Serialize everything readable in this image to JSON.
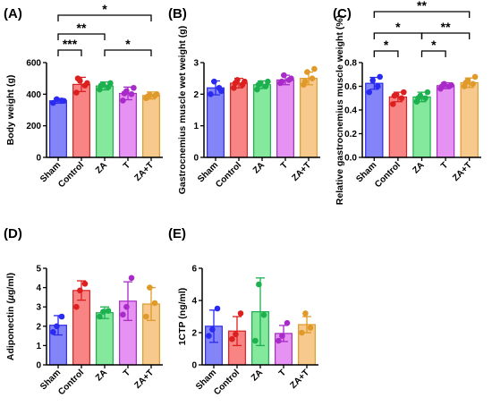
{
  "categories": [
    "Sham",
    "Control",
    "ZA",
    "T",
    "ZA+T"
  ],
  "colors": {
    "fill": [
      "#6e6ef8",
      "#f76f6f",
      "#6ee48c",
      "#e27ff0",
      "#f7bf78"
    ],
    "dot": [
      "#2a2af0",
      "#dc1f1f",
      "#1db04e",
      "#a82ac8",
      "#e09a2a"
    ]
  },
  "chart_data": [
    {
      "panel": "(A)",
      "type": "bar",
      "ylabel": "Body weight (g)",
      "categories": [
        "Sham",
        "Control",
        "ZA",
        "T",
        "ZA+T"
      ],
      "ylim": [
        0,
        600
      ],
      "yticks": [
        0,
        200,
        400,
        600
      ],
      "values": [
        358,
        462,
        452,
        405,
        392
      ],
      "errors": [
        15,
        45,
        25,
        40,
        22
      ],
      "points": [
        [
          345,
          360,
          368,
          358
        ],
        [
          410,
          455,
          485,
          470,
          500
        ],
        [
          430,
          445,
          460,
          470,
          455
        ],
        [
          360,
          400,
          420,
          440,
          405
        ],
        [
          375,
          390,
          395,
          400,
          385
        ]
      ],
      "significance": [
        {
          "from": 0,
          "to": 1,
          "label": "***"
        },
        {
          "from": 0,
          "to": 2,
          "label": "**"
        },
        {
          "from": 0,
          "to": 4,
          "label": "*"
        },
        {
          "from": 2,
          "to": 4,
          "label": "*"
        }
      ]
    },
    {
      "panel": "(B)",
      "type": "bar",
      "ylabel": "Gastrocnemius muscle wet weight (g)",
      "categories": [
        "Sham",
        "Control",
        "ZA",
        "T",
        "ZA+T"
      ],
      "ylim": [
        0,
        3
      ],
      "yticks": [
        0,
        1,
        2,
        3
      ],
      "values": [
        2.2,
        2.35,
        2.3,
        2.45,
        2.5
      ],
      "errors": [
        0.22,
        0.15,
        0.12,
        0.15,
        0.2
      ],
      "points": [
        [
          2.0,
          2.2,
          2.4,
          2.1
        ],
        [
          2.2,
          2.3,
          2.45,
          2.4,
          2.35
        ],
        [
          2.15,
          2.25,
          2.35,
          2.4,
          2.3
        ],
        [
          2.35,
          2.45,
          2.6,
          2.5,
          2.4
        ],
        [
          2.3,
          2.5,
          2.7,
          2.8,
          2.4
        ]
      ],
      "significance": []
    },
    {
      "panel": "(C)",
      "type": "bar",
      "ylabel": "Relative gastrocnemius muscle weight (%)",
      "categories": [
        "Sham",
        "Control",
        "ZA",
        "T",
        "ZA+T"
      ],
      "ylim": [
        0,
        0.8
      ],
      "yticks": [
        0.0,
        0.2,
        0.4,
        0.6,
        0.8
      ],
      "values": [
        0.625,
        0.51,
        0.51,
        0.605,
        0.63
      ],
      "errors": [
        0.05,
        0.04,
        0.04,
        0.025,
        0.04
      ],
      "points": [
        [
          0.55,
          0.6,
          0.65,
          0.68
        ],
        [
          0.45,
          0.5,
          0.53,
          0.55,
          0.52
        ],
        [
          0.47,
          0.5,
          0.52,
          0.55,
          0.5
        ],
        [
          0.58,
          0.6,
          0.62,
          0.61,
          0.6
        ],
        [
          0.6,
          0.62,
          0.65,
          0.68,
          0.63
        ]
      ],
      "significance": [
        {
          "from": 0,
          "to": 1,
          "label": "*"
        },
        {
          "from": 0,
          "to": 2,
          "label": "*"
        },
        {
          "from": 0,
          "to": 4,
          "label": "**"
        },
        {
          "from": 2,
          "to": 3,
          "label": "*"
        },
        {
          "from": 2,
          "to": 4,
          "label": "**"
        }
      ]
    },
    {
      "panel": "(D)",
      "type": "bar",
      "ylabel": "Adiponectin (µg/ml)",
      "categories": [
        "Sham",
        "Control",
        "ZA",
        "T",
        "ZA+T"
      ],
      "ylim": [
        0,
        5
      ],
      "yticks": [
        0,
        1,
        2,
        3,
        4,
        5
      ],
      "values": [
        2.05,
        3.85,
        2.7,
        3.3,
        3.15
      ],
      "errors": [
        0.5,
        0.5,
        0.3,
        1.0,
        0.85
      ],
      "points": [
        [
          1.7,
          2.5,
          2.0
        ],
        [
          3.0,
          4.2,
          3.85
        ],
        [
          2.5,
          2.8,
          2.75
        ],
        [
          2.6,
          4.5,
          3.0
        ],
        [
          2.5,
          3.2,
          4.0
        ]
      ],
      "significance": []
    },
    {
      "panel": "(E)",
      "type": "bar",
      "ylabel": "1CTP (ng/ml)",
      "categories": [
        "Sham",
        "Control",
        "ZA",
        "T",
        "ZA+T"
      ],
      "ylim": [
        0,
        6
      ],
      "yticks": [
        0,
        2,
        4,
        6
      ],
      "values": [
        2.4,
        2.1,
        3.3,
        1.95,
        2.5
      ],
      "errors": [
        1.0,
        0.9,
        2.1,
        0.5,
        0.5
      ],
      "points": [
        [
          1.8,
          3.5,
          2.2
        ],
        [
          1.6,
          3.2,
          1.9
        ],
        [
          1.5,
          3.1,
          5.0
        ],
        [
          1.5,
          2.6,
          1.8
        ],
        [
          2.0,
          2.3,
          3.2
        ]
      ],
      "significance": []
    }
  ]
}
